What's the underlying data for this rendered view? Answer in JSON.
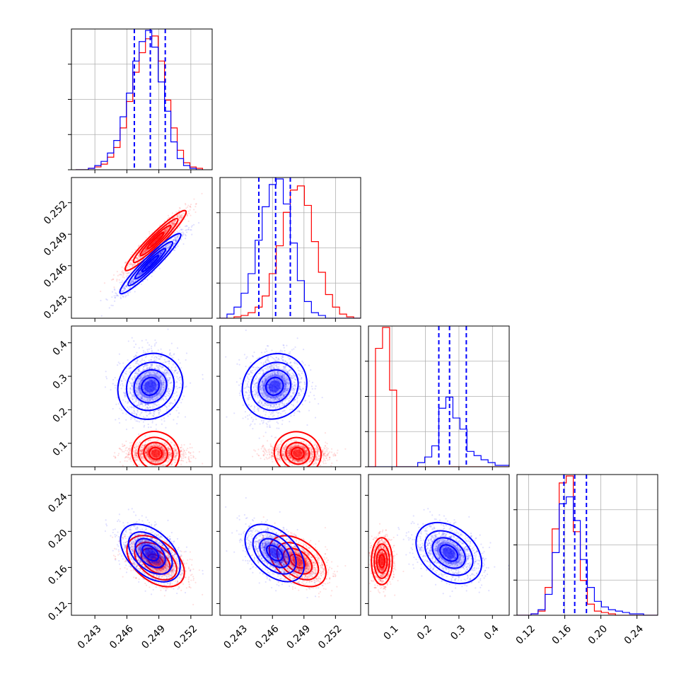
{
  "chart_data": {
    "type": "corner",
    "parameters": [
      {
        "ticks": [
          0.243,
          0.246,
          0.249,
          0.252
        ],
        "tick_labels": [
          "0.243",
          "0.246",
          "0.249",
          "0.252"
        ],
        "range": [
          0.2408,
          0.254
        ]
      },
      {
        "ticks": [
          0.243,
          0.246,
          0.249,
          0.252
        ],
        "tick_labels": [
          "0.243",
          "0.246",
          "0.249",
          "0.252"
        ],
        "range": [
          0.241,
          0.2544
        ]
      },
      {
        "ticks": [
          0.1,
          0.2,
          0.3,
          0.4
        ],
        "tick_labels": [
          "0.1",
          "0.2",
          "0.3",
          "0.4"
        ],
        "range": [
          0.03,
          0.45
        ]
      },
      {
        "ticks": [
          0.12,
          0.16,
          0.2,
          0.24
        ],
        "tick_labels": [
          "0.12",
          "0.16",
          "0.20",
          "0.24"
        ],
        "range": [
          0.107,
          0.263
        ]
      }
    ],
    "series": [
      {
        "color": "#ff0000",
        "mean": [
          0.2487,
          0.2484,
          0.07,
          0.167
        ],
        "sd": [
          0.0011,
          0.0011,
          0.012,
          0.01
        ],
        "quantiles_shown": false,
        "hist": [
          {
            "bin_edges": [
              0.2412,
              0.2531
            ],
            "counts": [
              0,
              0,
              1,
              2,
              4,
              9,
              16,
              30,
              49,
              70,
              84,
              94,
              96,
              78,
              50,
              30,
              14,
              5,
              2,
              1
            ]
          },
          {
            "bin_edges": [
              0.241,
              0.2544
            ],
            "counts": [
              0,
              0,
              1,
              2,
              4,
              8,
              16,
              32,
              52,
              76,
              92,
              95,
              81,
              55,
              33,
              17,
              8,
              3,
              1,
              0
            ]
          },
          {
            "bin_edges": [
              0.03,
              0.45
            ],
            "counts": [
              0,
              85,
              100,
              55,
              0,
              0,
              0,
              0,
              0,
              0,
              0,
              0,
              0,
              0,
              0,
              0,
              0,
              0,
              0,
              0
            ]
          },
          {
            "bin_edges": [
              0.107,
              0.263
            ],
            "counts": [
              0,
              0,
              1,
              3,
              20,
              62,
              95,
              100,
              60,
              25,
              8,
              3,
              2,
              1,
              0,
              0,
              0,
              0,
              0,
              0
            ]
          }
        ]
      },
      {
        "color": "#0000ff",
        "mean": [
          0.2482,
          0.2462,
          0.27,
          0.176
        ],
        "sd": [
          0.0011,
          0.0011,
          0.04,
          0.012
        ],
        "quantiles_shown": true,
        "quantiles": [
          [
            0.2467,
            0.2482,
            0.2496
          ],
          [
            0.2447,
            0.2463,
            0.2477
          ],
          [
            0.24,
            0.272,
            0.322
          ],
          [
            0.159,
            0.171,
            0.184
          ]
        ],
        "hist": [
          {
            "bin_edges": [
              0.2412,
              0.2531
            ],
            "counts": [
              0,
              0,
              1,
              3,
              6,
              12,
              21,
              38,
              55,
              78,
              92,
              100,
              88,
              63,
              42,
              20,
              8,
              3,
              1,
              0
            ]
          },
          {
            "bin_edges": [
              0.241,
              0.2544
            ],
            "counts": [
              0,
              3,
              8,
              18,
              32,
              56,
              80,
              96,
              100,
              82,
              54,
              27,
              12,
              4,
              2,
              0,
              0,
              0,
              0,
              0
            ]
          },
          {
            "bin_edges": [
              0.03,
              0.45
            ],
            "counts": [
              0,
              0,
              0,
              0,
              0,
              0,
              0,
              3,
              7,
              15,
              42,
              50,
              35,
              27,
              11,
              8,
              5,
              3,
              1,
              1
            ]
          },
          {
            "bin_edges": [
              0.107,
              0.263
            ],
            "counts": [
              0,
              0,
              1,
              4,
              15,
              45,
              80,
              85,
              68,
              40,
              20,
              10,
              6,
              4,
              3,
              2,
              1,
              1,
              0,
              0
            ]
          }
        ]
      }
    ],
    "grid": true
  }
}
